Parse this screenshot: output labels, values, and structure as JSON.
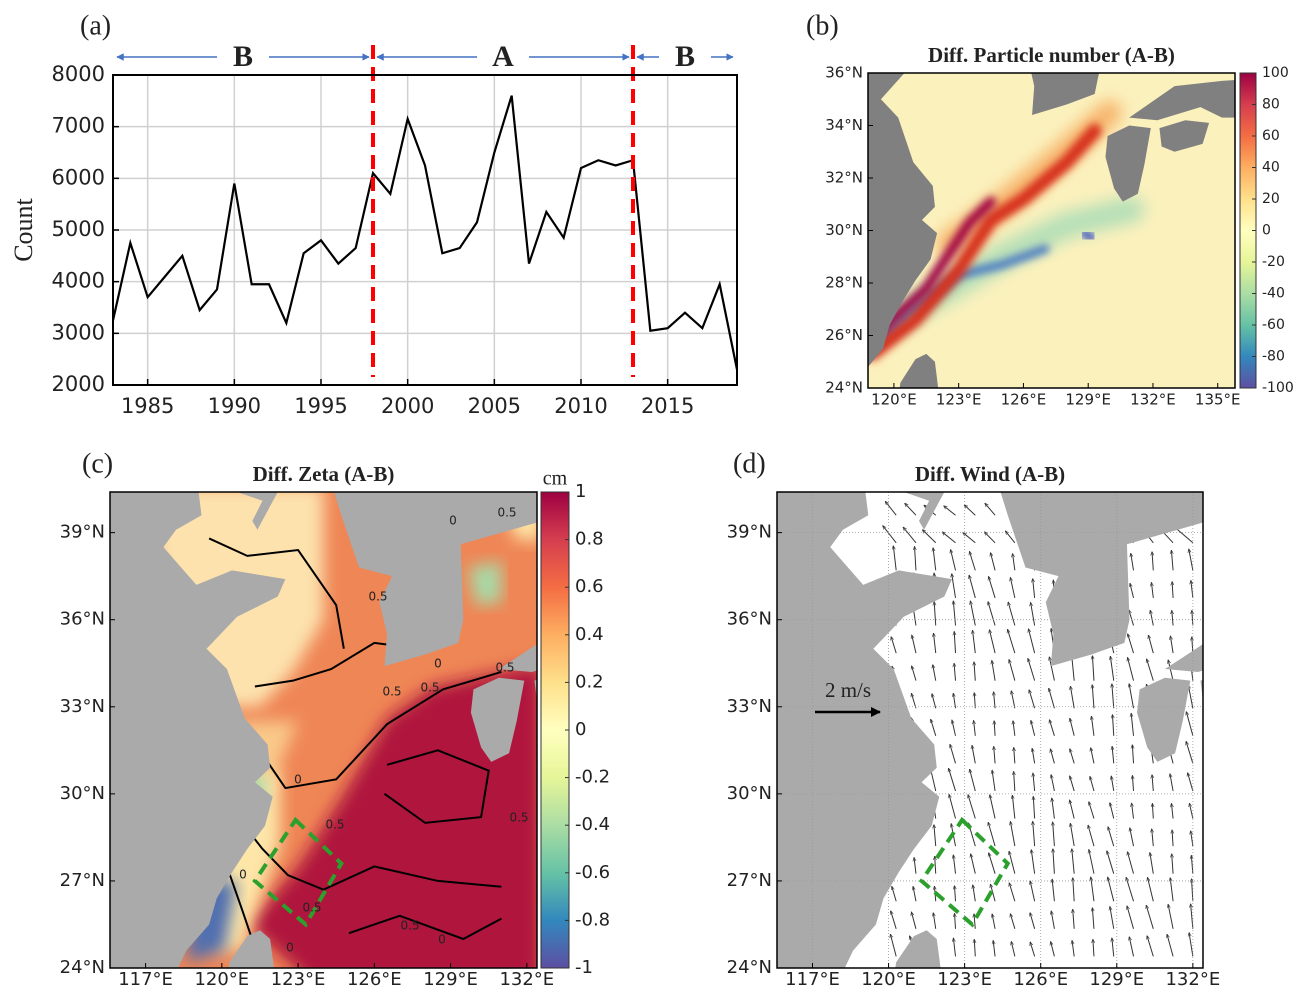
{
  "chart_data": [
    {
      "type": "line",
      "panel_label": "(a)",
      "ylabel": "Count",
      "x": [
        1983,
        1984,
        1985,
        1986,
        1987,
        1988,
        1989,
        1990,
        1991,
        1992,
        1993,
        1994,
        1995,
        1996,
        1997,
        1998,
        1999,
        2000,
        2001,
        2002,
        2003,
        2004,
        2005,
        2006,
        2007,
        2008,
        2009,
        2010,
        2011,
        2012,
        2013,
        2014,
        2015,
        2016,
        2017,
        2018,
        2019
      ],
      "values": [
        3250,
        4750,
        3700,
        4100,
        4500,
        3450,
        3850,
        5900,
        3950,
        3950,
        3200,
        4550,
        4800,
        4350,
        4650,
        6100,
        5700,
        7150,
        6250,
        4550,
        4650,
        5150,
        6500,
        7600,
        4350,
        5350,
        4850,
        6200,
        6350,
        6250,
        6350,
        3050,
        3100,
        3400,
        3100,
        3950,
        2300
      ],
      "color": "#000000",
      "xlim": [
        1983,
        2019
      ],
      "ylim": [
        2000,
        8000
      ],
      "xticks": [
        1985,
        1990,
        1995,
        2000,
        2005,
        2010,
        2015
      ],
      "yticks": [
        2000,
        3000,
        4000,
        5000,
        6000,
        7000,
        8000
      ],
      "grid": true,
      "period_breaks": [
        1998,
        2013
      ],
      "period_break_color": "#ff0000",
      "periods": [
        "B",
        "A",
        "B"
      ],
      "period_arrow_color": "#4472c4"
    },
    {
      "type": "map",
      "panel_label": "(b)",
      "title": "Diff. Particle number (A-B)",
      "xlim": [
        118.8,
        135.8
      ],
      "ylim": [
        24,
        36
      ],
      "xticks": [
        {
          "value": 120,
          "label": "120°E"
        },
        {
          "value": 123,
          "label": "123°E"
        },
        {
          "value": 126,
          "label": "126°E"
        },
        {
          "value": 129,
          "label": "129°E"
        },
        {
          "value": 132,
          "label": "132°E"
        },
        {
          "value": 135,
          "label": "135°E"
        }
      ],
      "yticks": [
        {
          "value": 24,
          "label": "24°N"
        },
        {
          "value": 26,
          "label": "26°N"
        },
        {
          "value": 28,
          "label": "28°N"
        },
        {
          "value": 30,
          "label": "30°N"
        },
        {
          "value": 32,
          "label": "32°N"
        },
        {
          "value": 34,
          "label": "34°N"
        },
        {
          "value": 36,
          "label": "36°N"
        }
      ],
      "colorbar": {
        "lim": [
          -100,
          100
        ],
        "ticks": [
          100,
          80,
          60,
          40,
          20,
          0,
          -20,
          -40,
          -60,
          -80,
          -100
        ]
      },
      "land_color": "#808080"
    },
    {
      "type": "map",
      "panel_label": "(c)",
      "title": "Diff. Zeta (A-B)",
      "xlim": [
        115.6,
        132.4
      ],
      "ylim": [
        24,
        40.4
      ],
      "xticks": [
        {
          "value": 117,
          "label": "117°E"
        },
        {
          "value": 120,
          "label": "120°E"
        },
        {
          "value": 123,
          "label": "123°E"
        },
        {
          "value": 126,
          "label": "126°E"
        },
        {
          "value": 129,
          "label": "129°E"
        },
        {
          "value": 132,
          "label": "132°E"
        }
      ],
      "yticks": [
        {
          "value": 24,
          "label": "24°N"
        },
        {
          "value": 27,
          "label": "27°N"
        },
        {
          "value": 30,
          "label": "30°N"
        },
        {
          "value": 33,
          "label": "33°N"
        },
        {
          "value": 36,
          "label": "36°N"
        },
        {
          "value": 39,
          "label": "39°N"
        }
      ],
      "colorbar": {
        "label": "cm",
        "lim": [
          -1,
          1
        ],
        "ticks": [
          1,
          0.8,
          0.6,
          0.4,
          0.2,
          0,
          -0.2,
          -0.4,
          -0.6,
          -0.8,
          -1
        ]
      },
      "contour_labels": [
        0,
        0.5,
        0.5,
        0,
        0.5,
        0.5,
        0.5,
        0,
        0.5,
        0.5,
        0,
        0.5,
        0.5,
        0,
        0
      ],
      "land_color": "#aaaaaa",
      "box_color": "#2ca02c"
    },
    {
      "type": "map",
      "panel_label": "(d)",
      "title": "Diff. Wind (A-B)",
      "xlim": [
        115.6,
        132.4
      ],
      "ylim": [
        24,
        40.4
      ],
      "xticks": [
        {
          "value": 117,
          "label": "117°E"
        },
        {
          "value": 120,
          "label": "120°E"
        },
        {
          "value": 123,
          "label": "123°E"
        },
        {
          "value": 126,
          "label": "126°E"
        },
        {
          "value": 129,
          "label": "129°E"
        },
        {
          "value": 132,
          "label": "132°E"
        }
      ],
      "yticks": [
        {
          "value": 24,
          "label": "24°N"
        },
        {
          "value": 27,
          "label": "27°N"
        },
        {
          "value": 30,
          "label": "30°N"
        },
        {
          "value": 33,
          "label": "33°N"
        },
        {
          "value": 36,
          "label": "36°N"
        },
        {
          "value": 39,
          "label": "39°N"
        }
      ],
      "grid": true,
      "scale_label": "2 m/s",
      "land_color": "#aaaaaa",
      "box_color": "#2ca02c"
    }
  ]
}
